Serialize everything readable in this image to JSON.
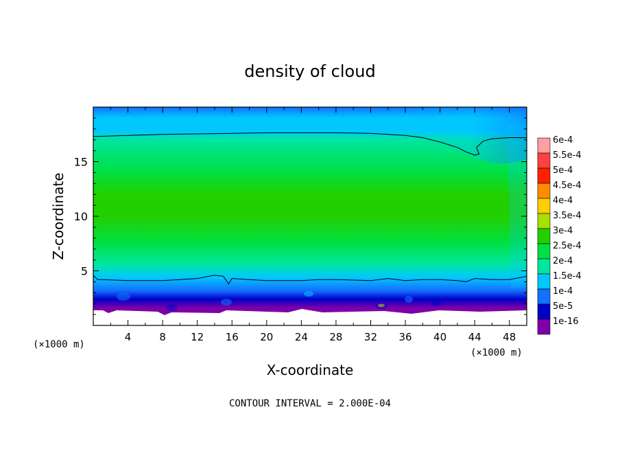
{
  "chart_data": {
    "type": "heatmap",
    "title": "density of cloud",
    "xlabel": "X-coordinate",
    "ylabel": "Z-coordinate",
    "x_unit": "(×1000 m)",
    "y_unit": "(×1000 m)",
    "xlim": [
      0,
      50
    ],
    "ylim": [
      0,
      20
    ],
    "x_ticks": [
      "4",
      "8",
      "12",
      "16",
      "20",
      "24",
      "28",
      "32",
      "36",
      "40",
      "44",
      "48"
    ],
    "y_ticks": [
      "5",
      "10",
      "15"
    ],
    "contour_note": "CONTOUR INTERVAL = 2.000E-04",
    "colorbar": {
      "labels": [
        "6e-4",
        "5.5e-4",
        "5e-4",
        "4.5e-4",
        "4e-4",
        "3.5e-4",
        "3e-4",
        "2.5e-4",
        "2e-4",
        "1.5e-4",
        "1e-4",
        "5e-5",
        "1e-16"
      ],
      "values": [
        0.0006,
        0.00055,
        0.0005,
        0.00045,
        0.0004,
        0.00035,
        0.0003,
        0.00025,
        0.0002,
        0.00015,
        0.0001,
        5e-05,
        1e-16
      ],
      "colors": [
        "#ff9f9f",
        "#ff4040",
        "#ff2000",
        "#ff8c00",
        "#ffd000",
        "#a8e000",
        "#22d000",
        "#00e040",
        "#00e6a0",
        "#00c8ff",
        "#1470ff",
        "#0000c8",
        "#7f00a8"
      ]
    },
    "contours": [
      {
        "level": 0.0002,
        "x": [
          0,
          4,
          8,
          12,
          16,
          20,
          24,
          28,
          32,
          36,
          38,
          40,
          42,
          43,
          44,
          44.5,
          44.2,
          45,
          46,
          48,
          50
        ],
        "y": [
          17.3,
          17.4,
          17.5,
          17.55,
          17.6,
          17.65,
          17.65,
          17.65,
          17.6,
          17.4,
          17.2,
          16.8,
          16.3,
          15.9,
          15.6,
          15.7,
          16.3,
          16.9,
          17.1,
          17.2,
          17.2
        ]
      },
      {
        "level": 0.0002,
        "x": [
          0,
          0.5,
          1,
          4,
          8,
          10,
          12,
          14,
          15,
          15.6,
          16,
          18,
          20,
          24,
          26,
          28,
          32,
          34,
          36,
          38,
          40,
          42,
          43,
          44,
          46,
          48,
          50
        ],
        "y": [
          4.6,
          4.2,
          4.2,
          4.1,
          4.1,
          4.2,
          4.3,
          4.6,
          4.5,
          3.8,
          4.3,
          4.2,
          4.1,
          4.1,
          4.2,
          4.2,
          4.1,
          4.3,
          4.1,
          4.2,
          4.2,
          4.1,
          4.0,
          4.3,
          4.2,
          4.2,
          4.5
        ]
      }
    ]
  }
}
